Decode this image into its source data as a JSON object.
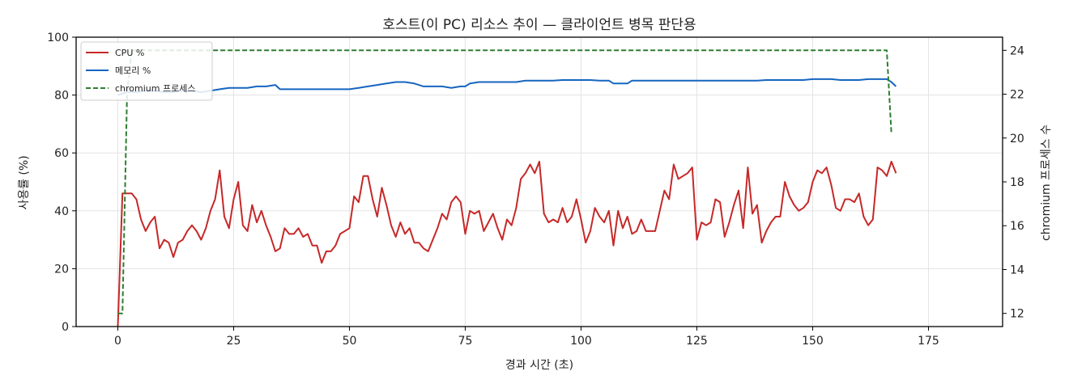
{
  "chart_data": {
    "type": "line",
    "title": "호스트(이 PC) 리소스 추이 — 클라이언트 병목 판단용",
    "xlabel": "경과 시간 (초)",
    "ylabel": "사용률 (%)",
    "y2label": "chromium 프로세스 수",
    "xlim": [
      -9,
      191
    ],
    "ylim": [
      0,
      100
    ],
    "y2lim": [
      11.4,
      24.6
    ],
    "x_ticks": [
      0,
      25,
      50,
      75,
      100,
      125,
      150,
      175
    ],
    "y_ticks": [
      0,
      20,
      40,
      60,
      80,
      100
    ],
    "y2_ticks": [
      12,
      14,
      16,
      18,
      20,
      22,
      24
    ],
    "grid": true,
    "legend_position": "top-left",
    "colors": {
      "cpu": "#c62828",
      "memory": "#1565c0",
      "chromium": "#2e7d32"
    },
    "series": [
      {
        "name": "CPU %",
        "axis": "left",
        "style": "solid",
        "color": "#c62828",
        "points": [
          [
            0,
            0
          ],
          [
            1,
            46
          ],
          [
            2,
            46
          ],
          [
            3,
            46
          ],
          [
            4,
            44
          ],
          [
            5,
            37
          ],
          [
            6,
            33
          ],
          [
            7,
            36
          ],
          [
            8,
            38
          ],
          [
            9,
            27
          ],
          [
            10,
            30
          ],
          [
            11,
            29
          ],
          [
            12,
            24
          ],
          [
            13,
            29
          ],
          [
            14,
            30
          ],
          [
            15,
            33
          ],
          [
            16,
            35
          ],
          [
            17,
            33
          ],
          [
            18,
            30
          ],
          [
            19,
            34
          ],
          [
            20,
            40
          ],
          [
            21,
            44
          ],
          [
            22,
            54
          ],
          [
            23,
            38
          ],
          [
            24,
            34
          ],
          [
            25,
            44
          ],
          [
            26,
            50
          ],
          [
            27,
            35
          ],
          [
            28,
            33
          ],
          [
            29,
            42
          ],
          [
            30,
            36
          ],
          [
            31,
            40
          ],
          [
            32,
            35
          ],
          [
            33,
            31
          ],
          [
            34,
            26
          ],
          [
            35,
            27
          ],
          [
            36,
            34
          ],
          [
            37,
            32
          ],
          [
            38,
            32
          ],
          [
            39,
            34
          ],
          [
            40,
            31
          ],
          [
            41,
            32
          ],
          [
            42,
            28
          ],
          [
            43,
            28
          ],
          [
            44,
            22
          ],
          [
            45,
            26
          ],
          [
            46,
            26
          ],
          [
            47,
            28
          ],
          [
            48,
            32
          ],
          [
            49,
            33
          ],
          [
            50,
            34
          ],
          [
            51,
            45
          ],
          [
            52,
            43
          ],
          [
            53,
            52
          ],
          [
            54,
            52
          ],
          [
            55,
            44
          ],
          [
            56,
            38
          ],
          [
            57,
            48
          ],
          [
            58,
            42
          ],
          [
            59,
            35
          ],
          [
            60,
            31
          ],
          [
            61,
            36
          ],
          [
            62,
            32
          ],
          [
            63,
            34
          ],
          [
            64,
            29
          ],
          [
            65,
            29
          ],
          [
            66,
            27
          ],
          [
            67,
            26
          ],
          [
            68,
            30
          ],
          [
            69,
            34
          ],
          [
            70,
            39
          ],
          [
            71,
            37
          ],
          [
            72,
            43
          ],
          [
            73,
            45
          ],
          [
            74,
            43
          ],
          [
            75,
            32
          ],
          [
            76,
            40
          ],
          [
            77,
            39
          ],
          [
            78,
            40
          ],
          [
            79,
            33
          ],
          [
            80,
            36
          ],
          [
            81,
            39
          ],
          [
            82,
            34
          ],
          [
            83,
            30
          ],
          [
            84,
            37
          ],
          [
            85,
            35
          ],
          [
            86,
            41
          ],
          [
            87,
            51
          ],
          [
            88,
            53
          ],
          [
            89,
            56
          ],
          [
            90,
            53
          ],
          [
            91,
            57
          ],
          [
            92,
            39
          ],
          [
            93,
            36
          ],
          [
            94,
            37
          ],
          [
            95,
            36
          ],
          [
            96,
            41
          ],
          [
            97,
            36
          ],
          [
            98,
            38
          ],
          [
            99,
            44
          ],
          [
            100,
            37
          ],
          [
            101,
            29
          ],
          [
            102,
            33
          ],
          [
            103,
            41
          ],
          [
            104,
            38
          ],
          [
            105,
            36
          ],
          [
            106,
            40
          ],
          [
            107,
            28
          ],
          [
            108,
            40
          ],
          [
            109,
            34
          ],
          [
            110,
            38
          ],
          [
            111,
            32
          ],
          [
            112,
            33
          ],
          [
            113,
            37
          ],
          [
            114,
            33
          ],
          [
            115,
            33
          ],
          [
            116,
            33
          ],
          [
            117,
            40
          ],
          [
            118,
            47
          ],
          [
            119,
            44
          ],
          [
            120,
            56
          ],
          [
            121,
            51
          ],
          [
            122,
            52
          ],
          [
            123,
            53
          ],
          [
            124,
            55
          ],
          [
            125,
            30
          ],
          [
            126,
            36
          ],
          [
            127,
            35
          ],
          [
            128,
            36
          ],
          [
            129,
            44
          ],
          [
            130,
            43
          ],
          [
            131,
            31
          ],
          [
            132,
            36
          ],
          [
            133,
            42
          ],
          [
            134,
            47
          ],
          [
            135,
            34
          ],
          [
            136,
            55
          ],
          [
            137,
            39
          ],
          [
            138,
            42
          ],
          [
            139,
            29
          ],
          [
            140,
            33
          ],
          [
            141,
            36
          ],
          [
            142,
            38
          ],
          [
            143,
            38
          ],
          [
            144,
            50
          ],
          [
            145,
            45
          ],
          [
            146,
            42
          ],
          [
            147,
            40
          ],
          [
            148,
            41
          ],
          [
            149,
            43
          ],
          [
            150,
            50
          ],
          [
            151,
            54
          ],
          [
            152,
            53
          ],
          [
            153,
            55
          ],
          [
            154,
            49
          ],
          [
            155,
            41
          ],
          [
            156,
            40
          ],
          [
            157,
            44
          ],
          [
            158,
            44
          ],
          [
            159,
            43
          ],
          [
            160,
            46
          ],
          [
            161,
            38
          ],
          [
            162,
            35
          ],
          [
            163,
            37
          ],
          [
            164,
            55
          ],
          [
            165,
            54
          ],
          [
            166,
            52
          ],
          [
            167,
            57
          ],
          [
            168,
            53
          ]
        ]
      },
      {
        "name": "메모리 %",
        "axis": "left",
        "style": "solid",
        "color": "#1565c0",
        "points": [
          [
            0,
            80
          ],
          [
            2,
            81
          ],
          [
            4,
            81
          ],
          [
            6,
            81.5
          ],
          [
            8,
            81.5
          ],
          [
            10,
            81
          ],
          [
            12,
            81
          ],
          [
            14,
            81.5
          ],
          [
            16,
            81.5
          ],
          [
            18,
            81
          ],
          [
            20,
            81.5
          ],
          [
            22,
            82
          ],
          [
            24,
            82.5
          ],
          [
            26,
            82.5
          ],
          [
            28,
            82.5
          ],
          [
            30,
            83
          ],
          [
            32,
            83
          ],
          [
            34,
            83.5
          ],
          [
            35,
            82
          ],
          [
            36,
            82
          ],
          [
            37,
            82
          ],
          [
            38,
            82
          ],
          [
            40,
            82
          ],
          [
            42,
            82
          ],
          [
            44,
            82
          ],
          [
            46,
            82
          ],
          [
            48,
            82
          ],
          [
            50,
            82
          ],
          [
            52,
            82.5
          ],
          [
            54,
            83
          ],
          [
            56,
            83.5
          ],
          [
            58,
            84
          ],
          [
            60,
            84.5
          ],
          [
            62,
            84.5
          ],
          [
            64,
            84
          ],
          [
            66,
            83
          ],
          [
            68,
            83
          ],
          [
            70,
            83
          ],
          [
            72,
            82.5
          ],
          [
            74,
            83
          ],
          [
            75,
            83
          ],
          [
            76,
            84
          ],
          [
            78,
            84.5
          ],
          [
            80,
            84.5
          ],
          [
            82,
            84.5
          ],
          [
            84,
            84.5
          ],
          [
            86,
            84.5
          ],
          [
            88,
            85
          ],
          [
            90,
            85
          ],
          [
            92,
            85
          ],
          [
            94,
            85
          ],
          [
            96,
            85.2
          ],
          [
            98,
            85.2
          ],
          [
            100,
            85.2
          ],
          [
            102,
            85.2
          ],
          [
            104,
            85
          ],
          [
            106,
            85
          ],
          [
            107,
            84
          ],
          [
            108,
            84
          ],
          [
            110,
            84
          ],
          [
            111,
            85
          ],
          [
            112,
            85
          ],
          [
            114,
            85
          ],
          [
            116,
            85
          ],
          [
            118,
            85
          ],
          [
            120,
            85
          ],
          [
            122,
            85
          ],
          [
            124,
            85
          ],
          [
            126,
            85
          ],
          [
            128,
            85
          ],
          [
            130,
            85
          ],
          [
            132,
            85
          ],
          [
            134,
            85
          ],
          [
            136,
            85
          ],
          [
            138,
            85
          ],
          [
            140,
            85.2
          ],
          [
            142,
            85.2
          ],
          [
            144,
            85.2
          ],
          [
            146,
            85.2
          ],
          [
            148,
            85.2
          ],
          [
            150,
            85.5
          ],
          [
            152,
            85.5
          ],
          [
            154,
            85.5
          ],
          [
            156,
            85.2
          ],
          [
            158,
            85.2
          ],
          [
            160,
            85.2
          ],
          [
            162,
            85.5
          ],
          [
            164,
            85.5
          ],
          [
            166,
            85.5
          ],
          [
            167,
            84.5
          ],
          [
            168,
            83
          ]
        ]
      },
      {
        "name": "chromium 프로세스",
        "axis": "right",
        "style": "dashed",
        "color": "#2e7d32",
        "points": [
          [
            0,
            12
          ],
          [
            1,
            12
          ],
          [
            2,
            22
          ],
          [
            3,
            24
          ],
          [
            4,
            24
          ],
          [
            20,
            24
          ],
          [
            40,
            24
          ],
          [
            60,
            24
          ],
          [
            80,
            24
          ],
          [
            100,
            24
          ],
          [
            120,
            24
          ],
          [
            140,
            24
          ],
          [
            160,
            24
          ],
          [
            166,
            24
          ],
          [
            167,
            20.2
          ]
        ]
      }
    ]
  }
}
